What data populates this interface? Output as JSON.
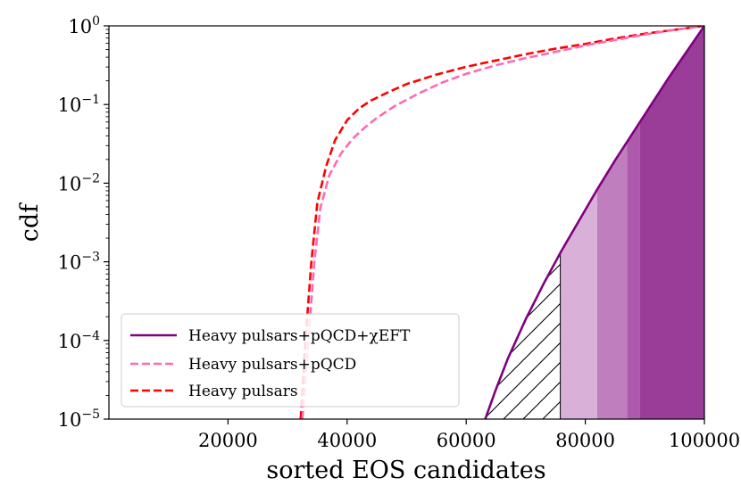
{
  "chart_data": {
    "type": "line",
    "xlabel": "sorted EOS candidates",
    "ylabel": "cdf",
    "xlim": [
      0,
      100000
    ],
    "ylim_log10": [
      -5,
      0
    ],
    "yscale": "log",
    "grid": false,
    "legend_position": "lower-left",
    "x_ticks": [
      {
        "value": 20000,
        "label": "20000"
      },
      {
        "value": 40000,
        "label": "40000"
      },
      {
        "value": 60000,
        "label": "60000"
      },
      {
        "value": 80000,
        "label": "80000"
      },
      {
        "value": 100000,
        "label": "100000"
      }
    ],
    "y_ticks": [
      {
        "exp": 0,
        "base": "10",
        "sup": "0"
      },
      {
        "exp": -1,
        "base": "10",
        "sup": "−1"
      },
      {
        "exp": -2,
        "base": "10",
        "sup": "−2"
      },
      {
        "exp": -3,
        "base": "10",
        "sup": "−3"
      },
      {
        "exp": -4,
        "base": "10",
        "sup": "−4"
      },
      {
        "exp": -5,
        "base": "10",
        "sup": "−5"
      }
    ],
    "series": [
      {
        "name": "Heavy pulsars+pQCD+χEFT",
        "color": "#800080",
        "style": "solid",
        "x": [
          63200,
          65000,
          67000,
          70000,
          73000,
          76000,
          79000,
          82000,
          85000,
          88000,
          91000,
          94000,
          97000,
          100000
        ],
        "log10_y": [
          -5.0,
          -4.62,
          -4.23,
          -3.73,
          -3.28,
          -2.86,
          -2.47,
          -2.08,
          -1.71,
          -1.36,
          -1.01,
          -0.66,
          -0.33,
          0.0
        ]
      },
      {
        "name": "Heavy pulsars+pQCD",
        "color": "#ff69b4",
        "style": "dashed",
        "x": [
          32500,
          33500,
          34500,
          35500,
          37000,
          39000,
          41000,
          43000,
          45000,
          48000,
          52000,
          56000,
          60000,
          65000,
          70000,
          75000,
          80000,
          85000,
          90000,
          95000,
          100000
        ],
        "log10_y": [
          -5.0,
          -4.0,
          -3.0,
          -2.32,
          -1.9,
          -1.62,
          -1.43,
          -1.29,
          -1.17,
          -1.02,
          -0.86,
          -0.72,
          -0.61,
          -0.5,
          -0.41,
          -0.33,
          -0.25,
          -0.18,
          -0.11,
          -0.05,
          0.0
        ]
      },
      {
        "name": "Heavy pulsars",
        "color": "#ff0000",
        "style": "dashed",
        "x": [
          32200,
          33000,
          34000,
          35000,
          36500,
          38000,
          40000,
          42000,
          44000,
          47000,
          50000,
          55000,
          60000,
          65000,
          70000,
          75000,
          80000,
          85000,
          90000,
          95000,
          100000
        ],
        "log10_y": [
          -5.0,
          -4.0,
          -3.0,
          -2.25,
          -1.78,
          -1.45,
          -1.2,
          -1.05,
          -0.95,
          -0.84,
          -0.74,
          -0.62,
          -0.52,
          -0.44,
          -0.36,
          -0.29,
          -0.23,
          -0.16,
          -0.1,
          -0.05,
          0.0
        ]
      }
    ],
    "shaded_bands": [
      {
        "x_from": 75800,
        "x_to": 82000,
        "color": "#d8b0d8"
      },
      {
        "x_from": 82000,
        "x_to": 87000,
        "color": "#bf7fbf"
      },
      {
        "x_from": 87000,
        "x_to": 89200,
        "color": "#ad5aad"
      },
      {
        "x_from": 89200,
        "x_to": 100000,
        "color": "#993d99"
      }
    ],
    "hatched_region": {
      "x_from": 63200,
      "x_to": 75800
    }
  }
}
